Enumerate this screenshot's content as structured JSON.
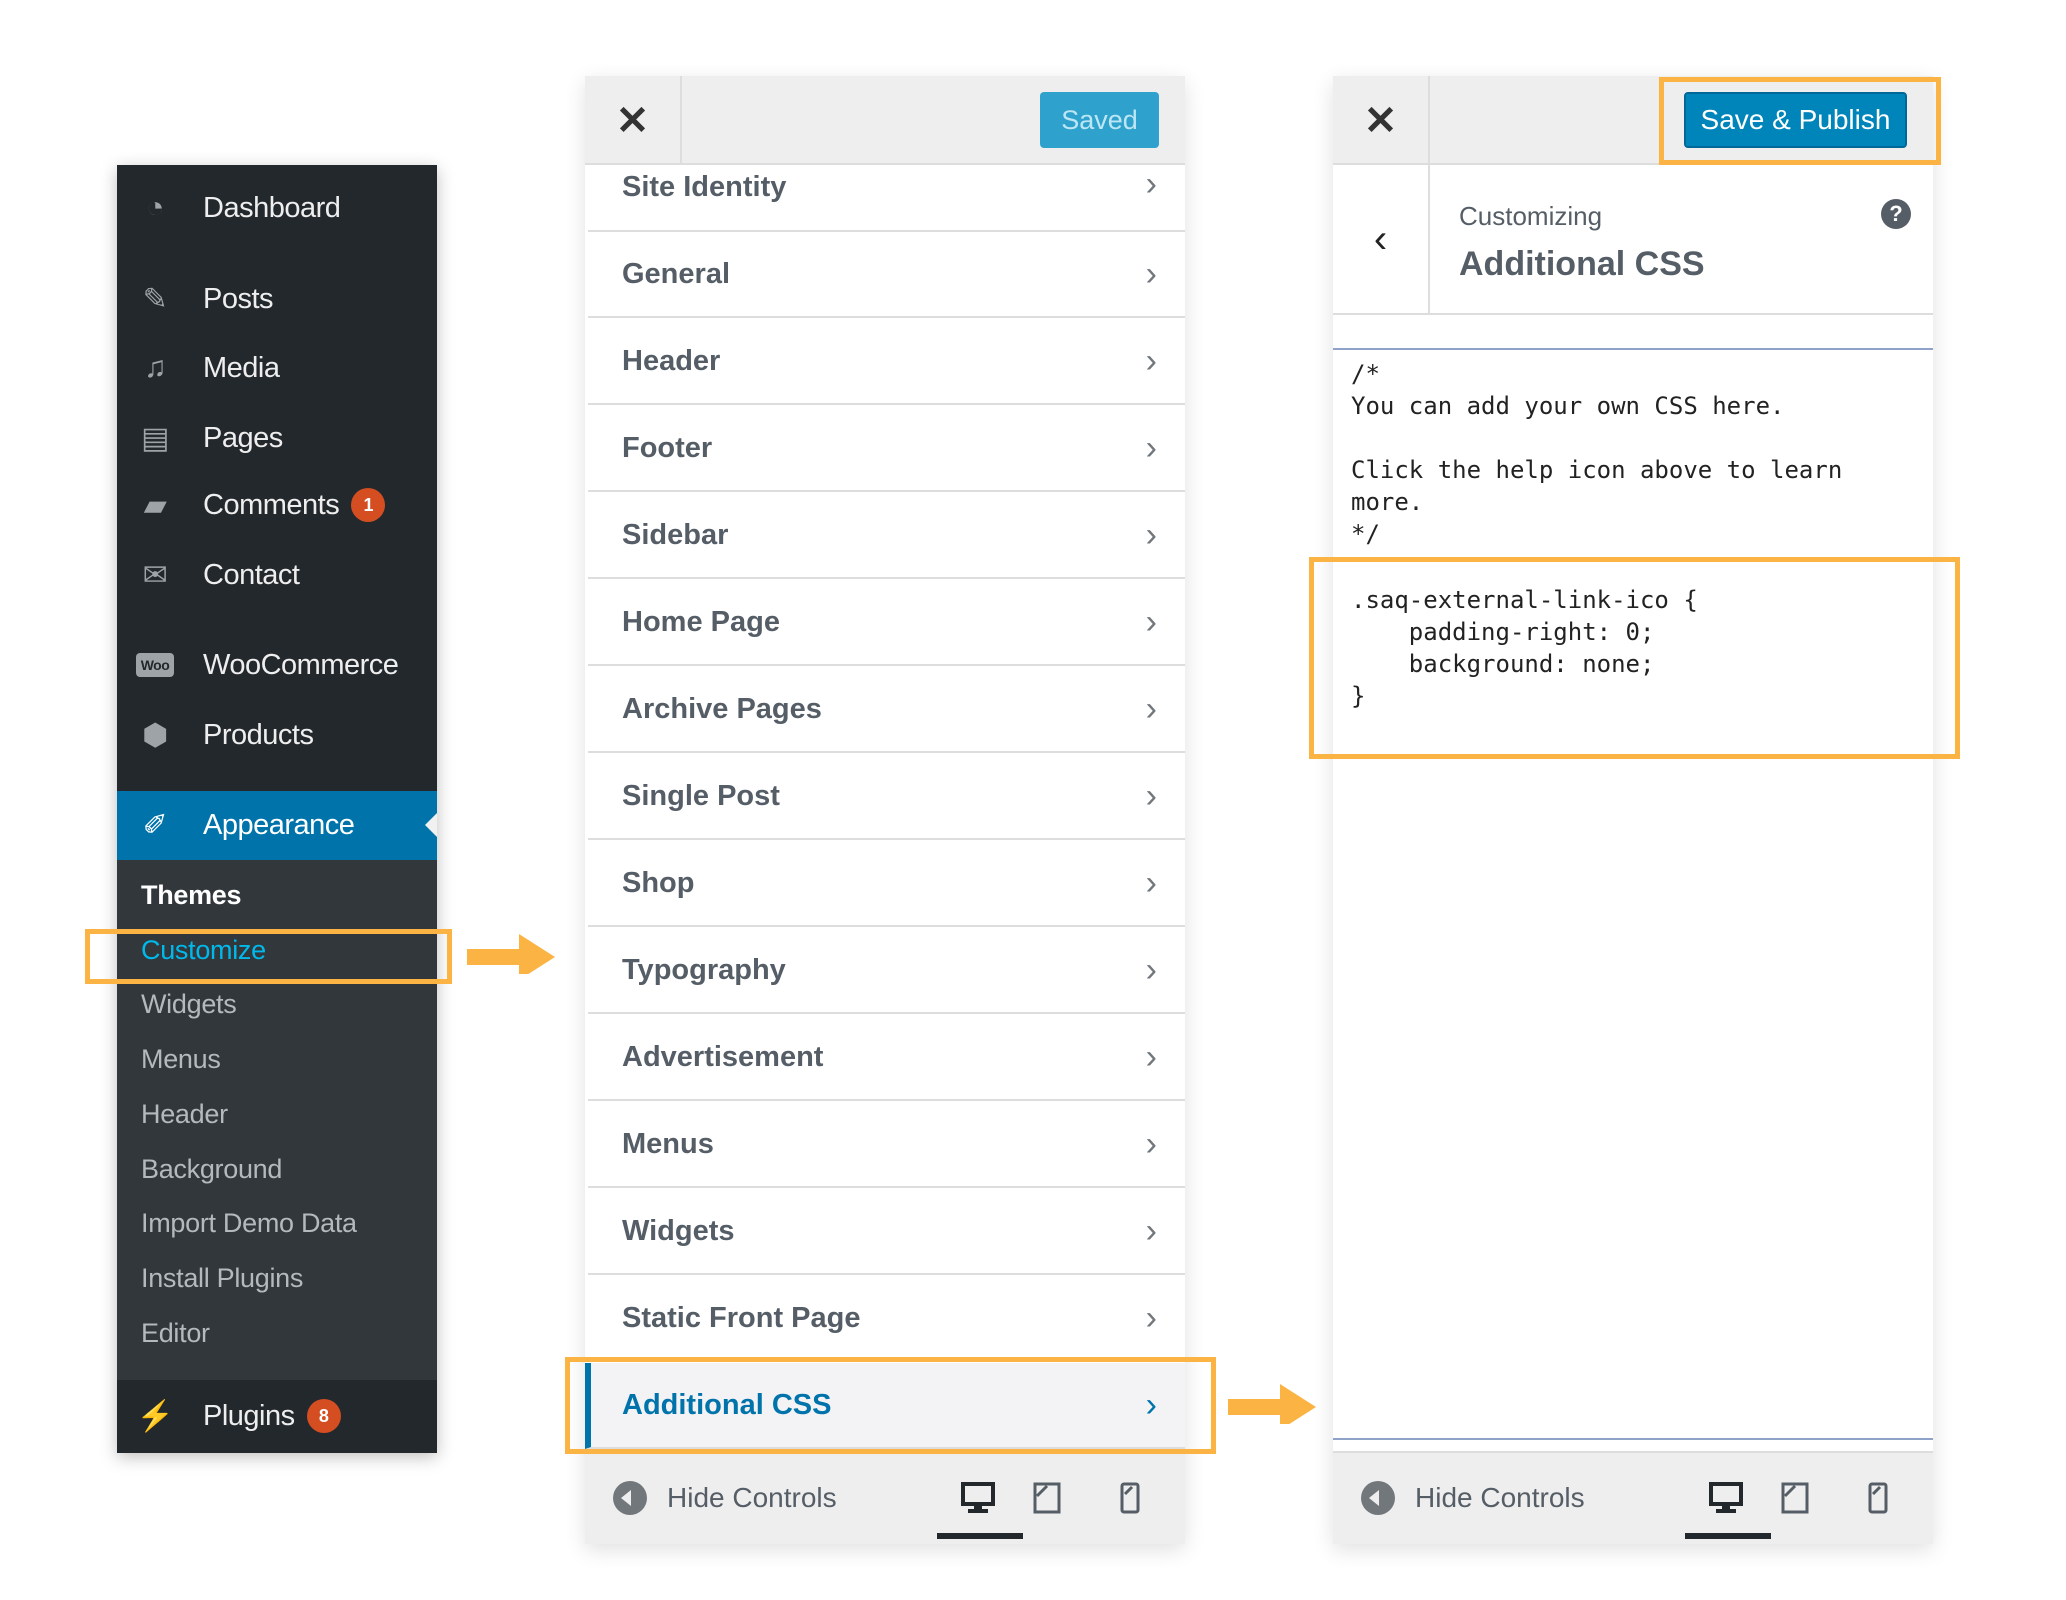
{
  "admin_menu": {
    "items": [
      {
        "label": "Dashboard",
        "icon": "dashboard-icon"
      },
      {
        "label": "Posts",
        "icon": "pin-icon"
      },
      {
        "label": "Media",
        "icon": "media-icon"
      },
      {
        "label": "Pages",
        "icon": "pages-icon"
      },
      {
        "label": "Comments",
        "icon": "comment-icon",
        "badge": "1"
      },
      {
        "label": "Contact",
        "icon": "envelope-icon"
      },
      {
        "label": "WooCommerce",
        "icon": "woo-icon",
        "icon_text": "Woo"
      },
      {
        "label": "Products",
        "icon": "box-icon"
      },
      {
        "label": "Appearance",
        "icon": "paintbrush-icon"
      },
      {
        "label": "Plugins",
        "icon": "plugin-icon",
        "badge": "8"
      }
    ],
    "submenu": [
      "Themes",
      "Customize",
      "Widgets",
      "Menus",
      "Header",
      "Background",
      "Import Demo Data",
      "Install Plugins",
      "Editor"
    ],
    "active_submenu": "Customize"
  },
  "customizer_menu": {
    "saved_label": "Saved",
    "sections": [
      "Site Identity",
      "General",
      "Header",
      "Footer",
      "Sidebar",
      "Home Page",
      "Archive Pages",
      "Single Post",
      "Shop",
      "Typography",
      "Advertisement",
      "Menus",
      "Widgets",
      "Static Front Page",
      "Additional CSS"
    ],
    "active_section": "Additional CSS",
    "hide_controls": "Hide Controls"
  },
  "css_panel": {
    "publish_label": "Save & Publish",
    "breadcrumb": "Customizing",
    "title": "Additional CSS",
    "comment_code": "/*\nYou can add your own CSS here.\n\nClick the help icon above to learn\nmore.\n*/",
    "custom_code": ".saq-external-link-ico {\n    padding-right: 0;\n    background: none;\n}",
    "hide_controls": "Hide Controls"
  },
  "colors": {
    "accent": "#0073aa",
    "highlight": "#fbb443",
    "sidebar": "#23282d",
    "badge": "#d54e21"
  }
}
